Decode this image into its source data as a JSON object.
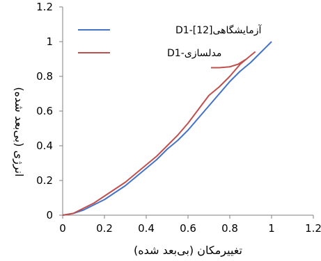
{
  "chart_data": {
    "type": "line",
    "xlabel": "تغییرمکان (بی‌بعد شده)",
    "ylabel": "انرژی (بی‌بعد شده)",
    "xlim": [
      0,
      1.2
    ],
    "ylim": [
      0,
      1.2
    ],
    "xticks": [
      "0",
      "0.2",
      "0.4",
      "0.6",
      "0.8",
      "1",
      "1.2"
    ],
    "yticks": [
      "0",
      "0.2",
      "0.4",
      "0.6",
      "0.8",
      "1",
      "1.2"
    ],
    "grid": false,
    "legend_position": "top-left",
    "series": [
      {
        "name": "آزمایشگاهی[12]-D1",
        "color": "#4472C4",
        "points": [
          [
            0,
            0
          ],
          [
            0.05,
            0.01
          ],
          [
            0.1,
            0.03
          ],
          [
            0.15,
            0.06
          ],
          [
            0.2,
            0.09
          ],
          [
            0.25,
            0.13
          ],
          [
            0.3,
            0.17
          ],
          [
            0.35,
            0.22
          ],
          [
            0.4,
            0.27
          ],
          [
            0.45,
            0.32
          ],
          [
            0.5,
            0.38
          ],
          [
            0.55,
            0.43
          ],
          [
            0.6,
            0.49
          ],
          [
            0.65,
            0.56
          ],
          [
            0.7,
            0.63
          ],
          [
            0.75,
            0.7
          ],
          [
            0.8,
            0.77
          ],
          [
            0.85,
            0.83
          ],
          [
            0.9,
            0.88
          ],
          [
            0.95,
            0.94
          ],
          [
            1.0,
            1.0
          ]
        ]
      },
      {
        "name": "مدلسازی-D1",
        "color": "#C0504D",
        "points": [
          [
            0,
            0
          ],
          [
            0.05,
            0.01
          ],
          [
            0.1,
            0.04
          ],
          [
            0.15,
            0.07
          ],
          [
            0.2,
            0.11
          ],
          [
            0.25,
            0.15
          ],
          [
            0.3,
            0.19
          ],
          [
            0.35,
            0.24
          ],
          [
            0.4,
            0.29
          ],
          [
            0.45,
            0.34
          ],
          [
            0.5,
            0.4
          ],
          [
            0.55,
            0.46
          ],
          [
            0.6,
            0.53
          ],
          [
            0.65,
            0.61
          ],
          [
            0.7,
            0.69
          ],
          [
            0.75,
            0.74
          ],
          [
            0.8,
            0.8
          ],
          [
            0.85,
            0.87
          ],
          [
            0.9,
            0.92
          ],
          [
            0.92,
            0.94
          ],
          [
            0.88,
            0.9
          ],
          [
            0.84,
            0.87
          ],
          [
            0.8,
            0.855
          ],
          [
            0.75,
            0.85
          ],
          [
            0.71,
            0.85
          ]
        ]
      }
    ]
  }
}
